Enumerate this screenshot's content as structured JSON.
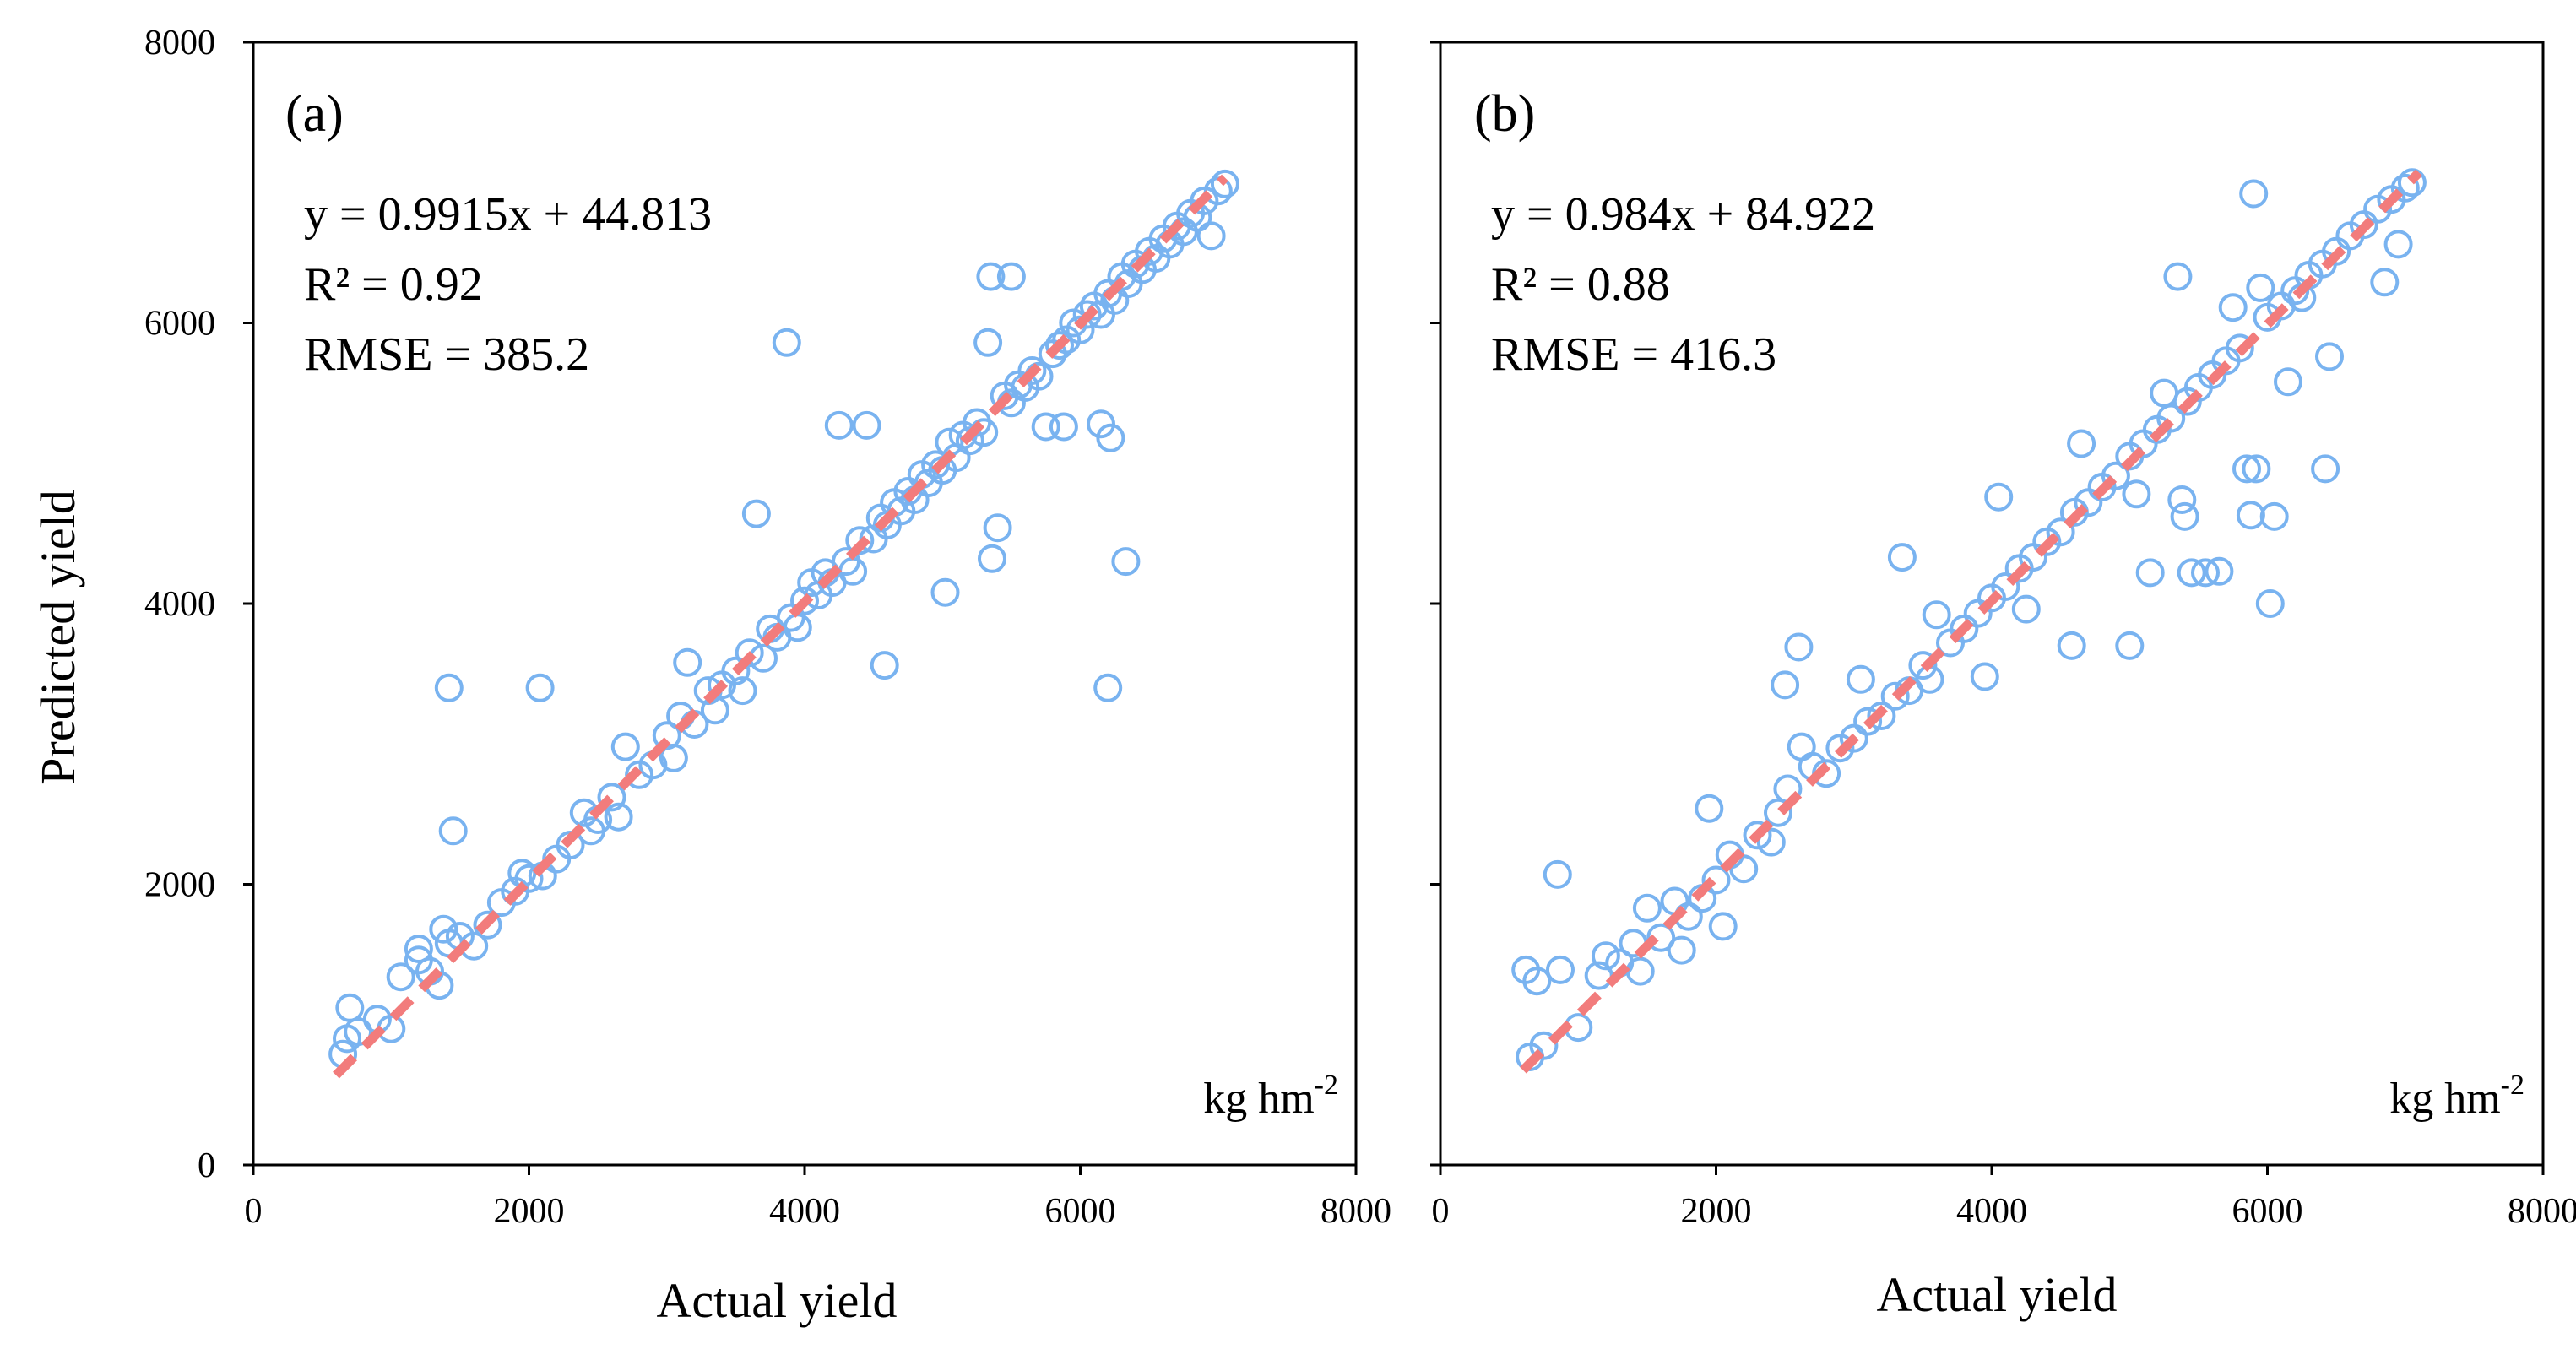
{
  "figure": {
    "y_axis_title": "Predicted yield",
    "colors": {
      "points": "#79b3f0",
      "fit_line": "#f27c7c",
      "frame": "#000000",
      "background": "#ffffff"
    }
  },
  "chart_data": [
    {
      "type": "scatter",
      "panel": "(a)",
      "xlabel": "Actual yield",
      "ylabel": "Predicted yield",
      "xlim": [
        0,
        8000
      ],
      "ylim": [
        0,
        8000
      ],
      "xticks": [
        "0",
        "2000",
        "4000",
        "6000",
        "8000"
      ],
      "yticks": [
        "0",
        "2000",
        "4000",
        "6000",
        "8000"
      ],
      "grid": false,
      "unit": "kg hm",
      "unit_exponent": "-2",
      "equation": "y = 0.9915x + 44.813",
      "r2": "R² = 0.92",
      "rmse": "RMSE = 385.2",
      "fit": {
        "slope": 0.9915,
        "intercept": 44.813,
        "x_range": [
          600,
          7050
        ]
      },
      "series": [
        {
          "name": "observations",
          "points": [
            [
              650,
              790
            ],
            [
              680,
              900
            ],
            [
              700,
              1120
            ],
            [
              760,
              950
            ],
            [
              900,
              1040
            ],
            [
              1000,
              970
            ],
            [
              1070,
              1340
            ],
            [
              1200,
              1540
            ],
            [
              1200,
              1460
            ],
            [
              1280,
              1380
            ],
            [
              1350,
              1280
            ],
            [
              1380,
              1680
            ],
            [
              1420,
              1580
            ],
            [
              1420,
              3400
            ],
            [
              1450,
              2380
            ],
            [
              1500,
              1630
            ],
            [
              1600,
              1560
            ],
            [
              1700,
              1710
            ],
            [
              1800,
              1870
            ],
            [
              1900,
              1950
            ],
            [
              1950,
              2080
            ],
            [
              2000,
              2040
            ],
            [
              2080,
              3400
            ],
            [
              2100,
              2060
            ],
            [
              2200,
              2180
            ],
            [
              2300,
              2280
            ],
            [
              2400,
              2510
            ],
            [
              2450,
              2380
            ],
            [
              2500,
              2460
            ],
            [
              2600,
              2620
            ],
            [
              2650,
              2480
            ],
            [
              2700,
              2980
            ],
            [
              2800,
              2780
            ],
            [
              2900,
              2850
            ],
            [
              3000,
              3060
            ],
            [
              3050,
              2900
            ],
            [
              3100,
              3200
            ],
            [
              3150,
              3580
            ],
            [
              3200,
              3140
            ],
            [
              3300,
              3380
            ],
            [
              3350,
              3240
            ],
            [
              3400,
              3420
            ],
            [
              3500,
              3520
            ],
            [
              3550,
              3380
            ],
            [
              3600,
              3650
            ],
            [
              3650,
              4640
            ],
            [
              3700,
              3610
            ],
            [
              3750,
              3820
            ],
            [
              3800,
              3760
            ],
            [
              3870,
              5860
            ],
            [
              3900,
              3900
            ],
            [
              3950,
              3830
            ],
            [
              4000,
              4020
            ],
            [
              4050,
              4150
            ],
            [
              4100,
              4060
            ],
            [
              4150,
              4220
            ],
            [
              4200,
              4150
            ],
            [
              4250,
              5270
            ],
            [
              4300,
              4300
            ],
            [
              4350,
              4230
            ],
            [
              4400,
              4450
            ],
            [
              4450,
              5270
            ],
            [
              4500,
              4460
            ],
            [
              4550,
              4610
            ],
            [
              4580,
              3560
            ],
            [
              4600,
              4560
            ],
            [
              4650,
              4720
            ],
            [
              4700,
              4660
            ],
            [
              4750,
              4800
            ],
            [
              4800,
              4740
            ],
            [
              4850,
              4920
            ],
            [
              4900,
              4860
            ],
            [
              4950,
              4990
            ],
            [
              5000,
              4950
            ],
            [
              5020,
              4080
            ],
            [
              5050,
              5150
            ],
            [
              5100,
              5040
            ],
            [
              5150,
              5200
            ],
            [
              5200,
              5160
            ],
            [
              5250,
              5290
            ],
            [
              5300,
              5220
            ],
            [
              5330,
              5860
            ],
            [
              5350,
              6330
            ],
            [
              5360,
              4320
            ],
            [
              5400,
              4540
            ],
            [
              5450,
              5480
            ],
            [
              5500,
              5430
            ],
            [
              5500,
              6330
            ],
            [
              5550,
              5560
            ],
            [
              5600,
              5540
            ],
            [
              5650,
              5660
            ],
            [
              5700,
              5620
            ],
            [
              5750,
              5260
            ],
            [
              5800,
              5780
            ],
            [
              5850,
              5840
            ],
            [
              5880,
              5260
            ],
            [
              5900,
              5880
            ],
            [
              5950,
              6000
            ],
            [
              6000,
              5950
            ],
            [
              6050,
              6060
            ],
            [
              6100,
              6120
            ],
            [
              6150,
              6060
            ],
            [
              6150,
              5280
            ],
            [
              6200,
              6210
            ],
            [
              6200,
              3400
            ],
            [
              6220,
              5180
            ],
            [
              6250,
              6160
            ],
            [
              6300,
              6330
            ],
            [
              6330,
              4300
            ],
            [
              6350,
              6280
            ],
            [
              6400,
              6420
            ],
            [
              6450,
              6380
            ],
            [
              6500,
              6510
            ],
            [
              6550,
              6460
            ],
            [
              6600,
              6600
            ],
            [
              6650,
              6560
            ],
            [
              6700,
              6690
            ],
            [
              6750,
              6650
            ],
            [
              6800,
              6780
            ],
            [
              6850,
              6750
            ],
            [
              6900,
              6870
            ],
            [
              6950,
              6620
            ],
            [
              7000,
              6940
            ],
            [
              7050,
              6990
            ]
          ]
        }
      ]
    },
    {
      "type": "scatter",
      "panel": "(b)",
      "xlabel": "Actual yield",
      "ylabel": "Predicted yield",
      "xlim": [
        0,
        8000
      ],
      "ylim": [
        0,
        8000
      ],
      "xticks": [
        "0",
        "2000",
        "4000",
        "6000",
        "8000"
      ],
      "yticks": [],
      "grid": false,
      "unit": "kg hm",
      "unit_exponent": "-2",
      "equation": "y = 0.984x + 84.922",
      "r2": "R² = 0.88",
      "rmse": "RMSE = 416.3",
      "fit": {
        "slope": 0.984,
        "intercept": 84.922,
        "x_range": [
          600,
          7100
        ]
      },
      "series": [
        {
          "name": "observations",
          "points": [
            [
              620,
              1390
            ],
            [
              650,
              770
            ],
            [
              700,
              1310
            ],
            [
              750,
              850
            ],
            [
              850,
              2070
            ],
            [
              870,
              1390
            ],
            [
              1000,
              980
            ],
            [
              1150,
              1350
            ],
            [
              1200,
              1490
            ],
            [
              1300,
              1440
            ],
            [
              1400,
              1580
            ],
            [
              1450,
              1380
            ],
            [
              1500,
              1830
            ],
            [
              1600,
              1620
            ],
            [
              1700,
              1880
            ],
            [
              1750,
              1530
            ],
            [
              1800,
              1770
            ],
            [
              1900,
              1900
            ],
            [
              1950,
              2540
            ],
            [
              2000,
              2030
            ],
            [
              2050,
              1700
            ],
            [
              2100,
              2210
            ],
            [
              2200,
              2110
            ],
            [
              2300,
              2350
            ],
            [
              2400,
              2300
            ],
            [
              2450,
              2510
            ],
            [
              2500,
              3420
            ],
            [
              2520,
              2680
            ],
            [
              2600,
              3690
            ],
            [
              2620,
              2980
            ],
            [
              2700,
              2840
            ],
            [
              2800,
              2790
            ],
            [
              2900,
              2970
            ],
            [
              3000,
              3040
            ],
            [
              3050,
              3460
            ],
            [
              3100,
              3160
            ],
            [
              3200,
              3200
            ],
            [
              3300,
              3340
            ],
            [
              3350,
              4330
            ],
            [
              3400,
              3380
            ],
            [
              3500,
              3560
            ],
            [
              3550,
              3460
            ],
            [
              3600,
              3920
            ],
            [
              3700,
              3720
            ],
            [
              3800,
              3820
            ],
            [
              3900,
              3930
            ],
            [
              3950,
              3480
            ],
            [
              4000,
              4040
            ],
            [
              4050,
              4760
            ],
            [
              4100,
              4120
            ],
            [
              4200,
              4250
            ],
            [
              4250,
              3960
            ],
            [
              4300,
              4330
            ],
            [
              4400,
              4440
            ],
            [
              4500,
              4510
            ],
            [
              4580,
              3700
            ],
            [
              4600,
              4650
            ],
            [
              4650,
              5140
            ],
            [
              4700,
              4720
            ],
            [
              4800,
              4830
            ],
            [
              4900,
              4910
            ],
            [
              5000,
              5050
            ],
            [
              5000,
              3700
            ],
            [
              5050,
              4780
            ],
            [
              5100,
              5140
            ],
            [
              5150,
              4220
            ],
            [
              5200,
              5240
            ],
            [
              5250,
              5500
            ],
            [
              5300,
              5320
            ],
            [
              5350,
              6330
            ],
            [
              5380,
              4740
            ],
            [
              5400,
              4620
            ],
            [
              5420,
              5440
            ],
            [
              5450,
              4220
            ],
            [
              5500,
              5540
            ],
            [
              5550,
              4220
            ],
            [
              5600,
              5630
            ],
            [
              5650,
              4230
            ],
            [
              5700,
              5730
            ],
            [
              5750,
              6110
            ],
            [
              5800,
              5820
            ],
            [
              5850,
              4960
            ],
            [
              5880,
              4630
            ],
            [
              5900,
              6920
            ],
            [
              5920,
              4960
            ],
            [
              5950,
              6250
            ],
            [
              6000,
              6040
            ],
            [
              6020,
              4000
            ],
            [
              6050,
              4620
            ],
            [
              6100,
              6120
            ],
            [
              6150,
              5580
            ],
            [
              6200,
              6230
            ],
            [
              6250,
              6180
            ],
            [
              6300,
              6340
            ],
            [
              6400,
              6420
            ],
            [
              6420,
              4960
            ],
            [
              6450,
              5760
            ],
            [
              6500,
              6510
            ],
            [
              6600,
              6620
            ],
            [
              6700,
              6700
            ],
            [
              6800,
              6810
            ],
            [
              6850,
              6290
            ],
            [
              6900,
              6880
            ],
            [
              6950,
              6560
            ],
            [
              7000,
              6960
            ],
            [
              7050,
              7000
            ]
          ]
        }
      ]
    }
  ]
}
